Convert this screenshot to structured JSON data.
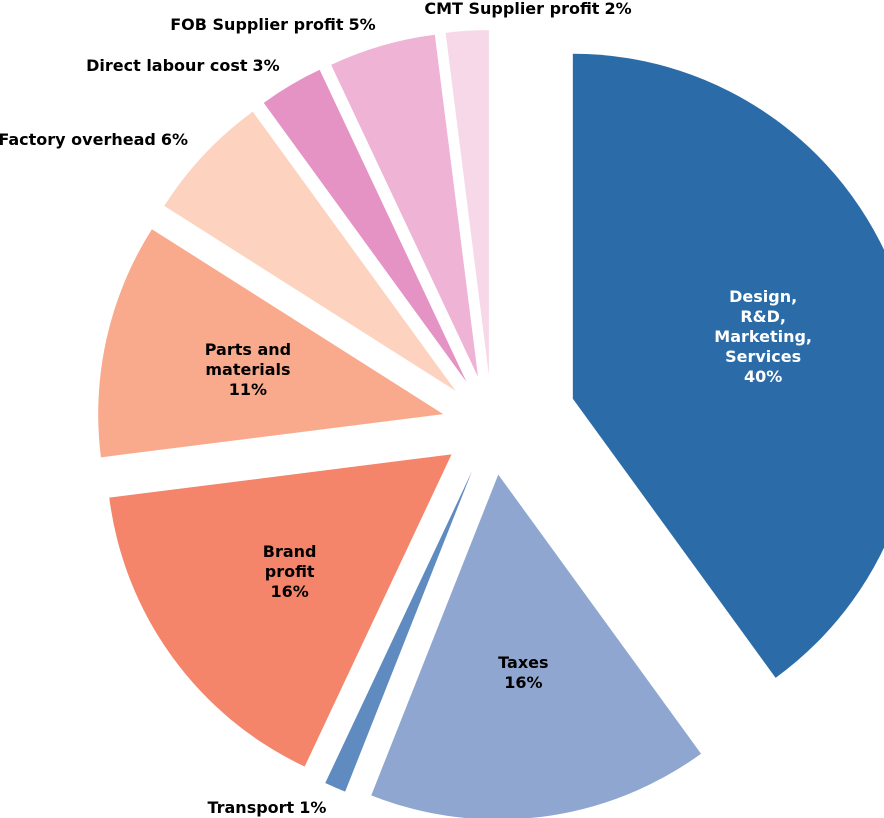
{
  "chart_data": {
    "type": "pie",
    "categories": [
      "Design, R&D, Marketing, Services",
      "Taxes",
      "Transport",
      "Brand profit",
      "Parts and materials",
      "Factory overhead",
      "Direct labour cost",
      "FOB Supplier profit",
      "CMT Supplier profit"
    ],
    "values": [
      40,
      16,
      1,
      16,
      11,
      6,
      3,
      5,
      2
    ],
    "value_labels": [
      "40%",
      "16%",
      "1%",
      "16%",
      "11%",
      "6%",
      "3%",
      "5%",
      "2%"
    ],
    "colors": [
      "#2b6ca8",
      "#8fa7d0",
      "#5f8bc0",
      "#f4846a",
      "#f9a98c",
      "#fdd3c0",
      "#e592c4",
      "#efb3d6",
      "#f7d8e8"
    ]
  }
}
